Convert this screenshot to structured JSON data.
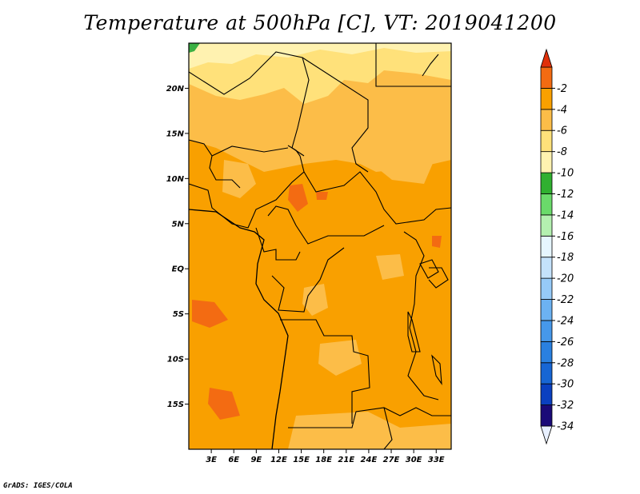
{
  "title": "Temperature at 500hPa [C], VT: 2019041200",
  "footer": "GrADS: IGES/COLA",
  "map": {
    "lat_labels": [
      {
        "lat": 20,
        "label": "20N"
      },
      {
        "lat": 15,
        "label": "15N"
      },
      {
        "lat": 10,
        "label": "10N"
      },
      {
        "lat": 5,
        "label": "5N"
      },
      {
        "lat": 0,
        "label": "EQ"
      },
      {
        "lat": -5,
        "label": "5S"
      },
      {
        "lat": -10,
        "label": "10S"
      },
      {
        "lat": -15,
        "label": "15S"
      }
    ],
    "lon_labels": [
      {
        "lon": 3,
        "label": "3E"
      },
      {
        "lon": 6,
        "label": "6E"
      },
      {
        "lon": 9,
        "label": "9E"
      },
      {
        "lon": 12,
        "label": "12E"
      },
      {
        "lon": 15,
        "label": "15E"
      },
      {
        "lon": 18,
        "label": "18E"
      },
      {
        "lon": 21,
        "label": "21E"
      },
      {
        "lon": 24,
        "label": "24E"
      },
      {
        "lon": 27,
        "label": "27E"
      },
      {
        "lon": 30,
        "label": "30E"
      },
      {
        "lon": 33,
        "label": "33E"
      }
    ],
    "lon_range": [
      0,
      35
    ],
    "lat_range": [
      -20,
      25
    ],
    "field_colors": {
      "lt_-12": "#3cb043",
      "-12_-10": "#fff2b0",
      "-10_-8": "#ffe17a",
      "-8_-6": "#fcbd48",
      "-6_-4": "#f9a000",
      "-4_-2": "#f36b12"
    }
  },
  "colorbar": {
    "levels": [
      {
        "color": "#e8f0ff",
        "label": "-34"
      },
      {
        "color": "#1a0a78",
        "label": "-32"
      },
      {
        "color": "#0a40c0",
        "label": "-30"
      },
      {
        "color": "#1766d4",
        "label": "-28"
      },
      {
        "color": "#2a80e0",
        "label": "-26"
      },
      {
        "color": "#4698ea",
        "label": "-24"
      },
      {
        "color": "#6cb2f2",
        "label": "-22"
      },
      {
        "color": "#96caf8",
        "label": "-20"
      },
      {
        "color": "#c4e2fb",
        "label": "-18"
      },
      {
        "color": "#e6f6ff",
        "label": "-16"
      },
      {
        "color": "#b4f0b0",
        "label": "-14"
      },
      {
        "color": "#6ada6a",
        "label": "-12"
      },
      {
        "color": "#30b030",
        "label": "-10"
      },
      {
        "color": "#fff2b0",
        "label": "-8"
      },
      {
        "color": "#ffe17a",
        "label": "-6"
      },
      {
        "color": "#fcbd48",
        "label": "-4"
      },
      {
        "color": "#f9a000",
        "label": "-2"
      },
      {
        "color": "#f36b12",
        "label": ""
      },
      {
        "color": "#e0300a",
        "label": ""
      }
    ]
  }
}
